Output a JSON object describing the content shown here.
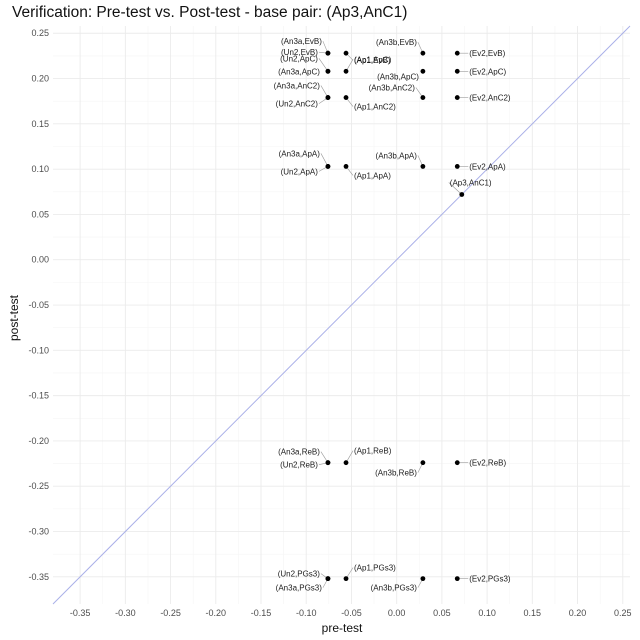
{
  "chart_data": {
    "type": "scatter",
    "title": "Verification: Pre-test vs. Post-test - base pair: (Ap3,AnC1)",
    "xlabel": "pre-test",
    "ylabel": "post-test",
    "xlim": [
      -0.38,
      0.258
    ],
    "ylim": [
      -0.38,
      0.258
    ],
    "x_ticks": [
      -0.35,
      -0.3,
      -0.25,
      -0.2,
      -0.15,
      -0.1,
      -0.05,
      0.0,
      0.05,
      0.1,
      0.15,
      0.2,
      0.25
    ],
    "y_ticks": [
      -0.35,
      -0.3,
      -0.25,
      -0.2,
      -0.15,
      -0.1,
      -0.05,
      0.0,
      0.05,
      0.1,
      0.15,
      0.2,
      0.25
    ],
    "grid": true,
    "reference_line": "y = x",
    "colors": {
      "points": "#000000",
      "reference_line": "#aab0e8",
      "grid_major": "#ebebeb",
      "grid_minor": "#f5f5f5",
      "leader": "#999999"
    },
    "points": [
      {
        "label": "(An3a,EvB)",
        "x": -0.076,
        "y": 0.228
      },
      {
        "label": "(Un2,EvB)",
        "x": -0.076,
        "y": 0.228
      },
      {
        "label": "(Ap1,EvB)",
        "x": -0.056,
        "y": 0.228
      },
      {
        "label": "(An3b,EvB)",
        "x": 0.029,
        "y": 0.228
      },
      {
        "label": "(Ev2,EvB)",
        "x": 0.067,
        "y": 0.228
      },
      {
        "label": "(Un2,ApC)",
        "x": -0.076,
        "y": 0.208
      },
      {
        "label": "(An3a,ApC)",
        "x": -0.076,
        "y": 0.208
      },
      {
        "label": "(Ap1,ApC)",
        "x": -0.056,
        "y": 0.208
      },
      {
        "label": "(An3b,ApC)",
        "x": 0.029,
        "y": 0.208
      },
      {
        "label": "(Ev2,ApC)",
        "x": 0.067,
        "y": 0.208
      },
      {
        "label": "(An3a,AnC2)",
        "x": -0.076,
        "y": 0.179
      },
      {
        "label": "(Un2,AnC2)",
        "x": -0.076,
        "y": 0.179
      },
      {
        "label": "(Ap1,AnC2)",
        "x": -0.056,
        "y": 0.179
      },
      {
        "label": "(An3b,AnC2)",
        "x": 0.029,
        "y": 0.179
      },
      {
        "label": "(Ev2,AnC2)",
        "x": 0.067,
        "y": 0.179
      },
      {
        "label": "(An3a,ApA)",
        "x": -0.076,
        "y": 0.103
      },
      {
        "label": "(Un2,ApA)",
        "x": -0.076,
        "y": 0.103
      },
      {
        "label": "(Ap1,ApA)",
        "x": -0.056,
        "y": 0.103
      },
      {
        "label": "(An3b,ApA)",
        "x": 0.029,
        "y": 0.103
      },
      {
        "label": "(Ev2,ApA)",
        "x": 0.067,
        "y": 0.103
      },
      {
        "label": "(Ap3,AnC1)",
        "x": 0.072,
        "y": 0.072
      },
      {
        "label": "(An3a,ReB)",
        "x": -0.076,
        "y": -0.224
      },
      {
        "label": "(Un2,ReB)",
        "x": -0.076,
        "y": -0.224
      },
      {
        "label": "(Ap1,ReB)",
        "x": -0.056,
        "y": -0.224
      },
      {
        "label": "(An3b,ReB)",
        "x": 0.029,
        "y": -0.224
      },
      {
        "label": "(Ev2,ReB)",
        "x": 0.067,
        "y": -0.224
      },
      {
        "label": "(Un2,PGs3)",
        "x": -0.076,
        "y": -0.352
      },
      {
        "label": "(An3a,PGs3)",
        "x": -0.076,
        "y": -0.352
      },
      {
        "label": "(Ap1,PGs3)",
        "x": -0.056,
        "y": -0.352
      },
      {
        "label": "(An3b,PGs3)",
        "x": 0.029,
        "y": -0.352
      },
      {
        "label": "(Ev2,PGs3)",
        "x": 0.067,
        "y": -0.352
      }
    ]
  }
}
